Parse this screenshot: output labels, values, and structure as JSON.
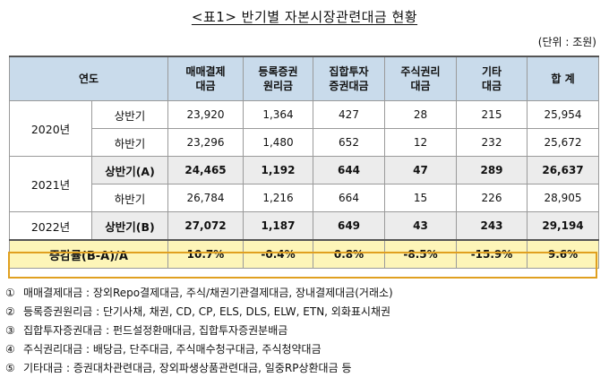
{
  "title": "<표1> 반기별 자본시장관련대금 현황",
  "unit": "(단위 : 조원)",
  "header": {
    "period": "연도",
    "columns": [
      [
        "매매결제",
        "대금"
      ],
      [
        "등록증권",
        "원리금"
      ],
      [
        "집합투자",
        "증권대금"
      ],
      [
        "주식권리",
        "대금"
      ],
      [
        "기타",
        "대금"
      ],
      [
        "합  계"
      ]
    ]
  },
  "rows": [
    {
      "year": "2020년",
      "half": "상반기",
      "values": [
        "23,920",
        "1,364",
        "427",
        "28",
        "215",
        "25,954"
      ]
    },
    {
      "year": "",
      "half": "하반기",
      "values": [
        "23,296",
        "1,480",
        "652",
        "12",
        "232",
        "25,672"
      ]
    },
    {
      "year": "2021년",
      "half": "상반기(A)",
      "values": [
        "24,465",
        "1,192",
        "644",
        "47",
        "289",
        "26,637"
      ]
    },
    {
      "year": "",
      "half": "하반기",
      "values": [
        "26,784",
        "1,216",
        "664",
        "15",
        "226",
        "28,905"
      ]
    },
    {
      "year": "2022년",
      "half": "상반기(B)",
      "values": [
        "27,072",
        "1,187",
        "649",
        "43",
        "243",
        "29,194"
      ]
    }
  ],
  "summary": {
    "label": "증감률(B-A)/A",
    "values": [
      "10.7%",
      "-0.4%",
      "0.8%",
      "-8.5%",
      "-15.9%",
      "9.6%"
    ]
  },
  "notes": [
    {
      "mark": "①",
      "text": "매매결제대금 : 장외Repo결제대금, 주식/채권기관결제대금, 장내결제대금(거래소)"
    },
    {
      "mark": "②",
      "text": "등록증권원리금 : 단기사채, 채권, CD, CP, ELS, DLS, ELW, ETN, 외화표시채권"
    },
    {
      "mark": "③",
      "text": "집합투자증권대금 : 펀드설정환매대금, 집합투자증권분배금"
    },
    {
      "mark": "④",
      "text": "주식권리대금 : 배당금, 단주대금, 주식매수청구대금, 주식청약대금"
    },
    {
      "mark": "⑤",
      "text": "기타대금 : 증권대차관련대금, 장외파생상품관련대금, 일중RP상환대금 등"
    }
  ]
}
